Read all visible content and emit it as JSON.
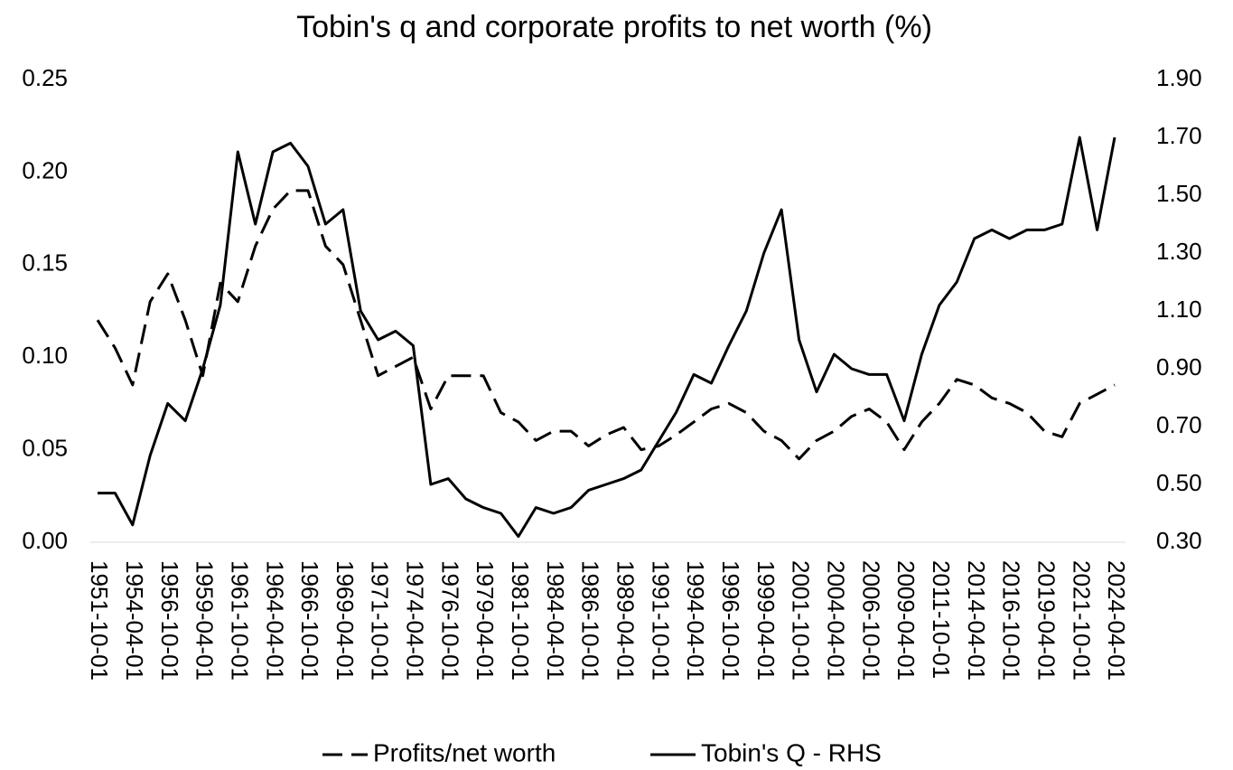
{
  "chart_data": {
    "type": "line",
    "title": "Tobin's q and corporate profits to net worth (%)",
    "categories": [
      "1951-10-01",
      null,
      "1954-04-01",
      null,
      "1956-10-01",
      null,
      "1959-04-01",
      null,
      "1961-10-01",
      null,
      "1964-04-01",
      null,
      "1966-10-01",
      null,
      "1969-04-01",
      null,
      "1971-10-01",
      null,
      "1974-04-01",
      null,
      "1976-10-01",
      null,
      "1979-04-01",
      null,
      "1981-10-01",
      null,
      "1984-04-01",
      null,
      "1986-10-01",
      null,
      "1989-04-01",
      null,
      "1991-10-01",
      null,
      "1994-04-01",
      null,
      "1996-10-01",
      null,
      "1999-04-01",
      null,
      "2001-10-01",
      null,
      "2004-04-01",
      null,
      "2006-10-01",
      null,
      "2009-04-01",
      null,
      "2011-10-01",
      null,
      "2014-04-01",
      null,
      "2016-10-01",
      null,
      "2019-04-01",
      null,
      "2021-10-01",
      null,
      "2024-04-01"
    ],
    "series": [
      {
        "name": "Profits/net worth",
        "color": "#000000",
        "style": "dashed",
        "axis": "y",
        "values": [
          0.12,
          0.105,
          0.085,
          0.13,
          0.145,
          0.12,
          0.09,
          0.14,
          0.13,
          0.16,
          0.18,
          0.19,
          0.19,
          0.16,
          0.15,
          0.12,
          0.09,
          0.095,
          0.1,
          0.072,
          0.09,
          0.09,
          0.09,
          0.07,
          0.065,
          0.055,
          0.06,
          0.06,
          0.052,
          0.058,
          0.062,
          0.05,
          0.052,
          0.058,
          0.065,
          0.072,
          0.075,
          0.07,
          0.06,
          0.055,
          0.045,
          0.055,
          0.06,
          0.068,
          0.072,
          0.065,
          0.05,
          0.065,
          0.075,
          0.088,
          0.085,
          0.078,
          0.075,
          0.07,
          0.06,
          0.057,
          0.075,
          0.08,
          0.085
        ]
      },
      {
        "name": "Tobin's Q - RHS",
        "color": "#000000",
        "style": "solid",
        "axis": "y2",
        "values": [
          0.47,
          0.47,
          0.36,
          0.6,
          0.78,
          0.72,
          0.9,
          1.12,
          1.65,
          1.4,
          1.65,
          1.68,
          1.6,
          1.4,
          1.45,
          1.1,
          1.0,
          1.03,
          0.98,
          0.5,
          0.52,
          0.45,
          0.42,
          0.4,
          0.32,
          0.42,
          0.4,
          0.42,
          0.48,
          0.5,
          0.52,
          0.55,
          0.65,
          0.75,
          0.88,
          0.85,
          0.98,
          1.1,
          1.3,
          1.45,
          1.0,
          0.82,
          0.95,
          0.9,
          0.88,
          0.88,
          0.72,
          0.95,
          1.12,
          1.2,
          1.35,
          1.38,
          1.35,
          1.38,
          1.38,
          1.4,
          1.7,
          1.38,
          1.7
        ]
      }
    ],
    "ylim": [
      0,
      0.25
    ],
    "yticks": [
      {
        "value": 0,
        "label": "0.00"
      },
      {
        "value": 0.05,
        "label": "0.05"
      },
      {
        "value": 0.1,
        "label": "0.10"
      },
      {
        "value": 0.15,
        "label": "0.15"
      },
      {
        "value": 0.2,
        "label": "0.20"
      },
      {
        "value": 0.25,
        "label": "0.25"
      }
    ],
    "y2lim": [
      0.3,
      1.9
    ],
    "y2ticks": [
      {
        "value": 0.3,
        "label": "0.30"
      },
      {
        "value": 0.5,
        "label": "0.50"
      },
      {
        "value": 0.7,
        "label": "0.70"
      },
      {
        "value": 0.9,
        "label": "0.90"
      },
      {
        "value": 1.1,
        "label": "1.10"
      },
      {
        "value": 1.3,
        "label": "1.30"
      },
      {
        "value": 1.5,
        "label": "1.50"
      },
      {
        "value": 1.7,
        "label": "1.70"
      },
      {
        "value": 1.9,
        "label": "1.90"
      }
    ],
    "grid": false,
    "legend": "bottom"
  }
}
